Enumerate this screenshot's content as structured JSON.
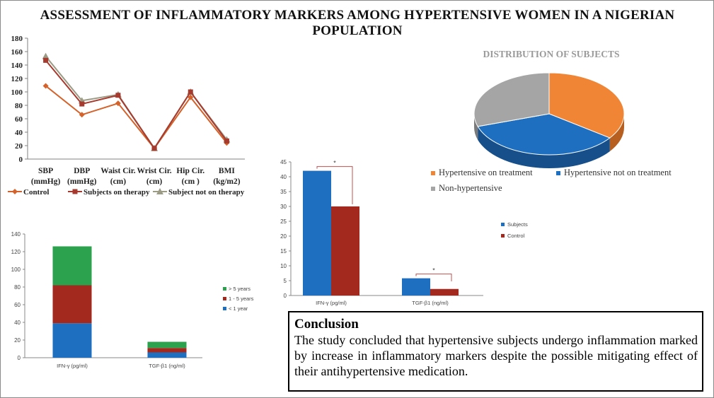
{
  "poster": {
    "title": "ASSESSMENT OF INFLAMMATORY MARKERS AMONG HYPERTENSIVE WOMEN IN A NIGERIAN POPULATION"
  },
  "conclusion": {
    "heading": "Conclusion",
    "text": "The study concluded that hypertensive subjects undergo inflammation marked by increase in inflammatory markers despite the possible mitigating effect of their antihypertensive medication."
  },
  "colors": {
    "control": "#d4622b",
    "on_therapy": "#a63a2e",
    "not_on_therapy": "#9b9b86",
    "blue": "#1f6fc0",
    "darkred": "#a3291e",
    "green": "#2ca24f",
    "orange": "#ef8535",
    "grey": "#a5a5a5"
  },
  "chart_data": [
    {
      "id": "line",
      "type": "line",
      "title": "",
      "categories": [
        "SBP\n(mmHg)",
        "DBP\n(mmHg)",
        "Waist Cir.\n(cm)",
        "Wrist Cir.\n(cm)",
        "Hip Cir.\n(cm )",
        "BMI\n(kg/m2)"
      ],
      "yticks": [
        0,
        20,
        40,
        60,
        80,
        100,
        120,
        140,
        160,
        180
      ],
      "ylim": [
        0,
        180
      ],
      "series": [
        {
          "name": "Control",
          "marker": "diamond",
          "values": [
            109,
            66,
            83,
            16,
            92,
            24
          ]
        },
        {
          "name": "Subjects on therapy",
          "marker": "square",
          "values": [
            147,
            82,
            95,
            16,
            100,
            27
          ]
        },
        {
          "name": "Subject not on therapy",
          "marker": "triangle",
          "values": [
            153,
            87,
            96,
            16,
            100,
            29
          ]
        }
      ],
      "legend": "bottom"
    },
    {
      "id": "pie",
      "type": "pie",
      "title": "DISTRIBUTION OF SUBJECTS",
      "slices": [
        {
          "label": "Hypertensive on treatment",
          "value": 35
        },
        {
          "label": "Hypertensive not on treatment",
          "value": 35
        },
        {
          "label": "Non-hypertensive",
          "value": 30
        }
      ],
      "legend": "bottom"
    },
    {
      "id": "grouped",
      "type": "bar",
      "categories": [
        "IFN-γ (pg/ml)",
        "TGF-β1 (ng/ml)"
      ],
      "yticks": [
        0,
        5,
        10,
        15,
        20,
        25,
        30,
        35,
        40,
        45
      ],
      "ylim": [
        0,
        45
      ],
      "series": [
        {
          "name": "Subjects",
          "values": [
            42,
            5.8
          ]
        },
        {
          "name": "Control",
          "values": [
            30,
            2.2
          ]
        }
      ],
      "annotations": [
        "*",
        "*"
      ],
      "legend": "right"
    },
    {
      "id": "stacked",
      "type": "bar",
      "stacked": true,
      "categories": [
        "IFN-γ (pg/ml)",
        "TGF-β1 (ng/ml)"
      ],
      "yticks": [
        0,
        20,
        40,
        60,
        80,
        100,
        120,
        140
      ],
      "ylim": [
        0,
        140
      ],
      "series": [
        {
          "name": "< 1 year",
          "values": [
            39,
            6
          ]
        },
        {
          "name": "1 - 5 years",
          "values": [
            43,
            5
          ]
        },
        {
          "name": "> 5 years",
          "values": [
            44,
            7
          ]
        }
      ],
      "legend": "right"
    }
  ]
}
